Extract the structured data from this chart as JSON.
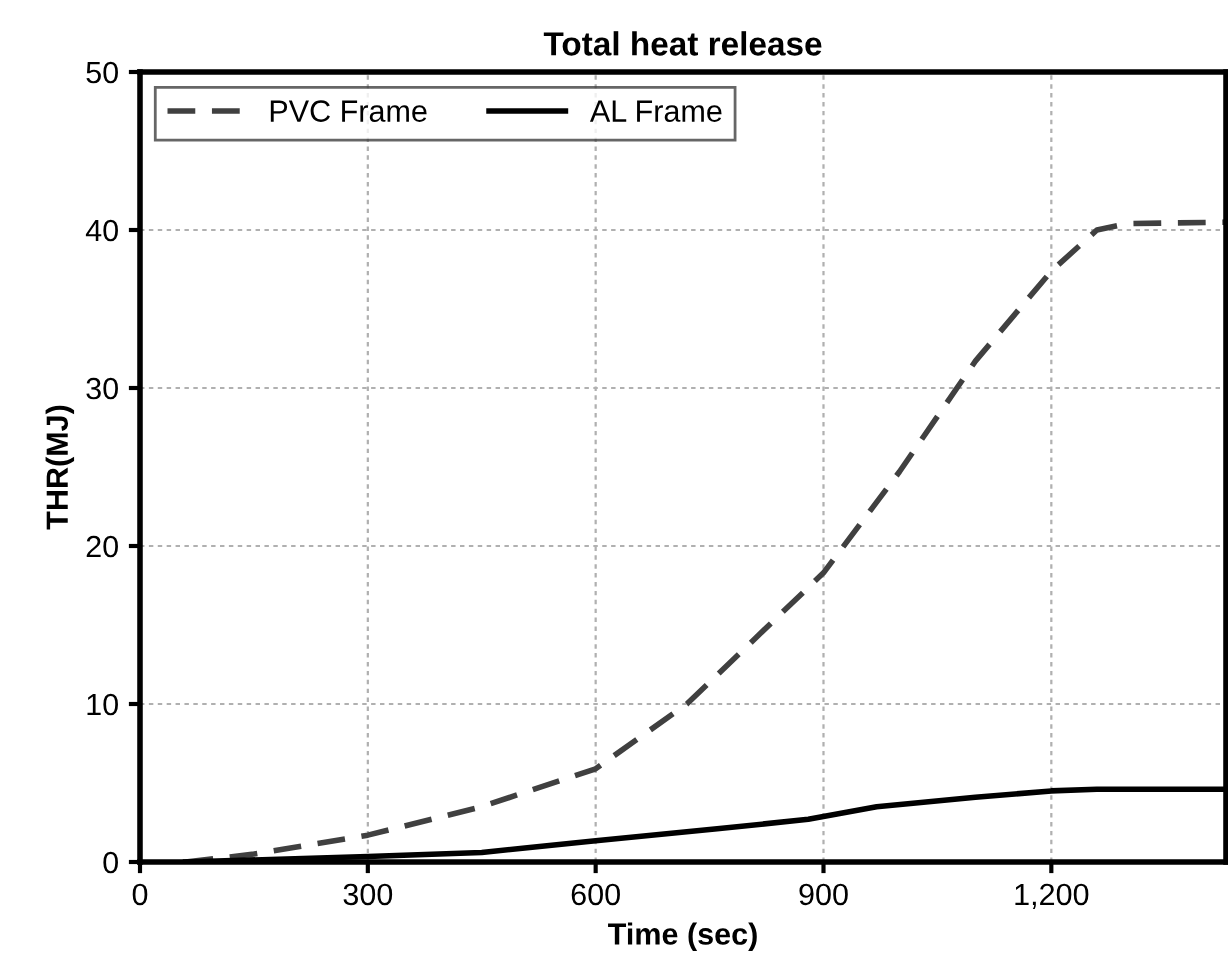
{
  "chart_data": {
    "type": "line",
    "title": "Total heat release",
    "xlabel": "Time (sec)",
    "ylabel": "THR(MJ)",
    "xlim": [
      0,
      1430
    ],
    "ylim": [
      0,
      50
    ],
    "xticks": [
      0,
      300,
      600,
      900,
      {
        "value": 1200,
        "label": "1,200"
      }
    ],
    "yticks": [
      0,
      10,
      20,
      30,
      40,
      50
    ],
    "grid": true,
    "legend": "top left",
    "marker": "none",
    "series": [
      {
        "name": "PVC Frame",
        "color": "#404040",
        "line_style": "dashed",
        "x": [
          60,
          150,
          300,
          450,
          600,
          720,
          900,
          1000,
          1100,
          1200,
          1260,
          1300,
          1430
        ],
        "values": [
          0,
          0.5,
          1.7,
          3.5,
          5.9,
          10,
          18.3,
          24.7,
          31.7,
          37.4,
          40,
          40.4,
          40.5
        ]
      },
      {
        "name": "AL Frame",
        "color": "#000000",
        "line_style": "solid",
        "x": [
          60,
          300,
          450,
          510,
          600,
          760,
          880,
          970,
          1100,
          1200,
          1260,
          1430
        ],
        "values": [
          0,
          0.35,
          0.6,
          0.9,
          1.35,
          2.1,
          2.7,
          3.5,
          4.1,
          4.5,
          4.6,
          4.6
        ]
      }
    ]
  }
}
